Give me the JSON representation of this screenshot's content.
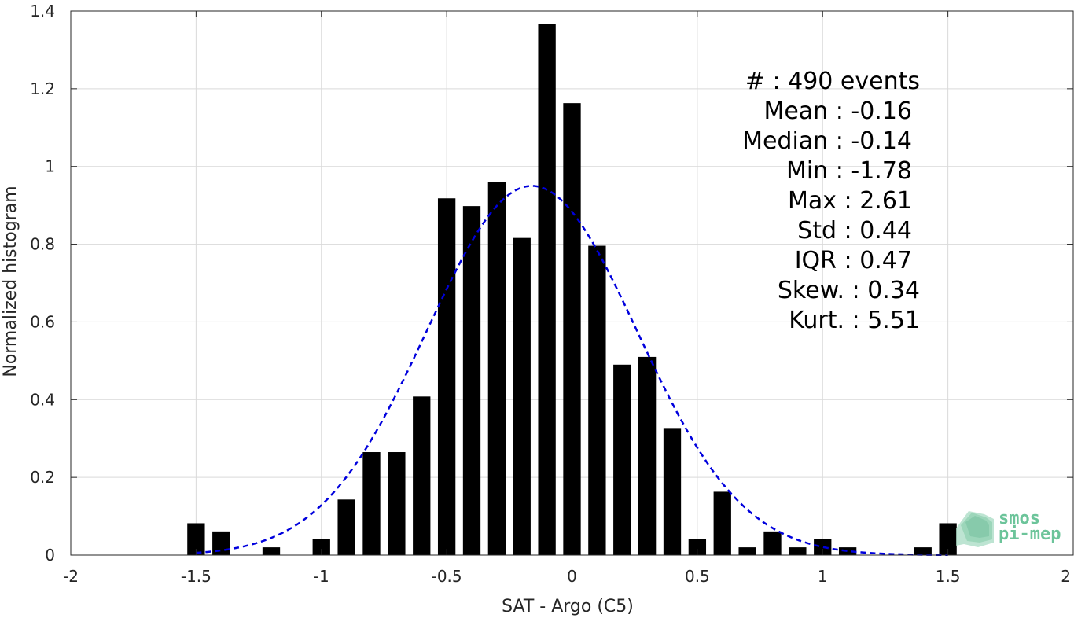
{
  "chart_data": {
    "type": "bar",
    "xlabel": "SAT - Argo (C5)",
    "ylabel": "Normalized histogram",
    "xlim": [
      -2,
      2
    ],
    "ylim": [
      0,
      1.4
    ],
    "x_ticks": [
      -2,
      -1.5,
      -1,
      -0.5,
      0,
      0.5,
      1,
      1.5,
      2
    ],
    "x_tick_labels": [
      "-2",
      "-1.5",
      "-1",
      "-0.5",
      "0",
      "0.5",
      "1",
      "1.5",
      "2"
    ],
    "y_ticks": [
      0,
      0.2,
      0.4,
      0.6,
      0.8,
      1,
      1.2,
      1.4
    ],
    "y_tick_labels": [
      "0",
      "0.2",
      "0.4",
      "0.6",
      "0.8",
      "1",
      "1.2",
      "1.4"
    ],
    "grid": true,
    "bar_color": "#000000",
    "bin_width": 0.1,
    "bars": [
      {
        "x": -1.5,
        "value": 0.082
      },
      {
        "x": -1.4,
        "value": 0.061
      },
      {
        "x": -1.2,
        "value": 0.02
      },
      {
        "x": -1.0,
        "value": 0.041
      },
      {
        "x": -0.9,
        "value": 0.143
      },
      {
        "x": -0.8,
        "value": 0.265
      },
      {
        "x": -0.7,
        "value": 0.265
      },
      {
        "x": -0.6,
        "value": 0.408
      },
      {
        "x": -0.5,
        "value": 0.918
      },
      {
        "x": -0.4,
        "value": 0.898
      },
      {
        "x": -0.3,
        "value": 0.959
      },
      {
        "x": -0.2,
        "value": 0.816
      },
      {
        "x": -0.1,
        "value": 1.367
      },
      {
        "x": 0.0,
        "value": 1.163
      },
      {
        "x": 0.1,
        "value": 0.796
      },
      {
        "x": 0.2,
        "value": 0.49
      },
      {
        "x": 0.3,
        "value": 0.51
      },
      {
        "x": 0.4,
        "value": 0.327
      },
      {
        "x": 0.5,
        "value": 0.041
      },
      {
        "x": 0.6,
        "value": 0.163
      },
      {
        "x": 0.7,
        "value": 0.02
      },
      {
        "x": 0.8,
        "value": 0.061
      },
      {
        "x": 0.9,
        "value": 0.02
      },
      {
        "x": 1.0,
        "value": 0.041
      },
      {
        "x": 1.1,
        "value": 0.02
      },
      {
        "x": 1.4,
        "value": 0.02
      },
      {
        "x": 1.5,
        "value": 0.082
      }
    ],
    "fit_curve": {
      "type": "gaussian",
      "mean": -0.16,
      "std": 0.42,
      "peak": 0.95,
      "x_range": [
        -1.5,
        1.5
      ],
      "color": "#0000dd",
      "style": "dashed"
    },
    "stats": [
      "#  : 490 events",
      "Mean : -0.16",
      "Median : -0.14",
      "Min : -1.78",
      "Max : 2.61",
      "Std : 0.44",
      "IQR : 0.47",
      "Skew. : 0.34",
      "Kurt. : 5.51"
    ]
  },
  "logo": {
    "line1": "smos",
    "line2": "pi-mep",
    "color": "#6cc49a"
  }
}
